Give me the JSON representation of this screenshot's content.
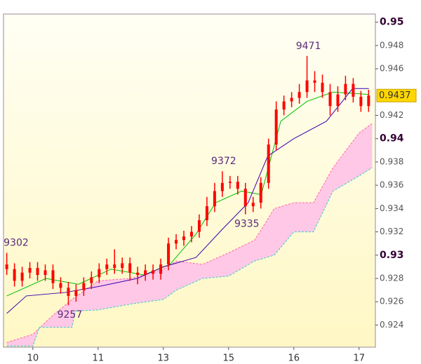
{
  "chart_data": {
    "type": "candlestick",
    "candle_color": "#ff0000",
    "x": [
      -0.4,
      -0.282,
      -0.164,
      -0.046,
      0.072,
      0.19,
      0.308,
      0.426,
      0.544,
      0.662,
      0.78,
      0.898,
      1.016,
      1.134,
      1.252,
      1.37,
      1.488,
      1.606,
      1.724,
      1.842,
      1.96,
      2.078,
      2.196,
      2.314,
      2.432,
      2.55,
      2.668,
      2.786,
      2.904,
      3.022,
      3.14,
      3.258,
      3.376,
      3.494,
      3.612,
      3.73,
      3.848,
      3.966,
      4.084,
      4.202,
      4.32,
      4.438,
      4.556,
      4.674,
      4.792,
      4.91,
      5.028,
      5.146
    ],
    "open": [
      0.9292,
      0.9288,
      0.9278,
      0.9285,
      0.9289,
      0.9283,
      0.9287,
      0.9276,
      0.9272,
      0.9265,
      0.927,
      0.9276,
      0.9281,
      0.9288,
      0.9292,
      0.9289,
      0.9293,
      0.9285,
      0.9283,
      0.9287,
      0.9284,
      0.9292,
      0.931,
      0.9313,
      0.9316,
      0.932,
      0.933,
      0.9342,
      0.9355,
      0.9362,
      0.9363,
      0.9357,
      0.9342,
      0.9345,
      0.9362,
      0.9395,
      0.9425,
      0.9432,
      0.9435,
      0.944,
      0.945,
      0.9448,
      0.944,
      0.9428,
      0.9438,
      0.9447,
      0.9436,
      0.9428
    ],
    "high": [
      0.9302,
      0.9293,
      0.929,
      0.9294,
      0.9294,
      0.9292,
      0.9292,
      0.9281,
      0.9277,
      0.9275,
      0.9281,
      0.9286,
      0.9293,
      0.9297,
      0.9305,
      0.9298,
      0.9298,
      0.929,
      0.9292,
      0.9292,
      0.9297,
      0.9315,
      0.9318,
      0.9321,
      0.9325,
      0.9335,
      0.935,
      0.9362,
      0.9372,
      0.9368,
      0.9368,
      0.9362,
      0.935,
      0.9367,
      0.94,
      0.9432,
      0.9437,
      0.944,
      0.9447,
      0.9471,
      0.9458,
      0.9455,
      0.9447,
      0.9445,
      0.9454,
      0.9452,
      0.9441,
      0.9442
    ],
    "low": [
      0.9283,
      0.9273,
      0.9273,
      0.928,
      0.9278,
      0.9278,
      0.9271,
      0.9267,
      0.9257,
      0.926,
      0.9265,
      0.9271,
      0.9276,
      0.9283,
      0.9284,
      0.9284,
      0.9278,
      0.9275,
      0.9278,
      0.9279,
      0.9279,
      0.9287,
      0.9305,
      0.9308,
      0.9311,
      0.9315,
      0.9325,
      0.9337,
      0.935,
      0.9357,
      0.9352,
      0.9335,
      0.9337,
      0.934,
      0.9357,
      0.939,
      0.942,
      0.9427,
      0.943,
      0.9435,
      0.944,
      0.9435,
      0.942,
      0.9423,
      0.9433,
      0.9431,
      0.9423,
      0.9423
    ],
    "close": [
      0.9288,
      0.9278,
      0.9285,
      0.9289,
      0.9283,
      0.9287,
      0.9276,
      0.9272,
      0.9265,
      0.927,
      0.9276,
      0.9281,
      0.9288,
      0.9292,
      0.9289,
      0.9293,
      0.9285,
      0.9283,
      0.9287,
      0.9284,
      0.9292,
      0.931,
      0.9313,
      0.9316,
      0.932,
      0.933,
      0.9342,
      0.9355,
      0.9362,
      0.9363,
      0.9357,
      0.9342,
      0.9345,
      0.9362,
      0.9395,
      0.9425,
      0.9432,
      0.9435,
      0.944,
      0.945,
      0.9448,
      0.944,
      0.9428,
      0.9438,
      0.9447,
      0.9436,
      0.9428,
      0.9437
    ],
    "lines": [
      {
        "color": "#00c000",
        "x": [
          -0.4,
          0.2,
          0.7,
          1.2,
          1.7,
          2.1,
          2.5,
          2.8,
          3.2,
          3.5,
          3.8,
          4.2,
          4.6,
          5.15
        ],
        "values": [
          0.9265,
          0.928,
          0.9275,
          0.9288,
          0.9283,
          0.9292,
          0.9318,
          0.9345,
          0.9355,
          0.9352,
          0.9415,
          0.9432,
          0.944,
          0.9438
        ]
      },
      {
        "color": "#3a00b0",
        "x": [
          -0.4,
          -0.1,
          0.5,
          1.0,
          1.6,
          2.0,
          2.5,
          2.9,
          3.3,
          3.6,
          4.0,
          4.5,
          4.9,
          5.15
        ],
        "values": [
          0.925,
          0.9265,
          0.9268,
          0.9273,
          0.928,
          0.929,
          0.9298,
          0.9322,
          0.9345,
          0.9385,
          0.94,
          0.9415,
          0.9443,
          0.9443
        ]
      }
    ],
    "cloud": {
      "fill": "#ffc8e6",
      "upper": {
        "color": "#ff66aa",
        "x": [
          -0.4,
          0.0,
          0.3,
          0.6,
          1.0,
          1.5,
          2.0,
          2.2,
          2.6,
          3.0,
          3.4,
          3.7,
          4.0,
          4.3,
          4.6,
          5.0,
          5.2
        ],
        "values": [
          0.9225,
          0.9232,
          0.9248,
          0.9262,
          0.9278,
          0.928,
          0.9288,
          0.9295,
          0.9292,
          0.9302,
          0.9313,
          0.934,
          0.9345,
          0.9345,
          0.9375,
          0.9405,
          0.9413
        ]
      },
      "lower": {
        "color": "#33cccc",
        "x": [
          -0.4,
          0.0,
          0.1,
          0.6,
          0.65,
          1.0,
          1.5,
          2.0,
          2.2,
          2.6,
          3.0,
          3.4,
          3.7,
          4.0,
          4.3,
          4.6,
          5.0,
          5.2
        ],
        "values": [
          0.9222,
          0.9222,
          0.9238,
          0.9238,
          0.9252,
          0.9253,
          0.9258,
          0.9262,
          0.927,
          0.928,
          0.9282,
          0.9295,
          0.93,
          0.932,
          0.932,
          0.9355,
          0.9368,
          0.9375
        ]
      }
    },
    "annotations": [
      {
        "label": "9302",
        "value": 0.9302,
        "x": -0.4,
        "placement": "above"
      },
      {
        "label": "9257",
        "value": 0.9257,
        "x": 0.544,
        "placement": "below"
      },
      {
        "label": "9372",
        "value": 0.9372,
        "x": 2.904,
        "placement": "above"
      },
      {
        "label": "9335",
        "value": 0.9335,
        "x": 3.258,
        "placement": "below"
      },
      {
        "label": "9471",
        "value": 0.9471,
        "x": 4.202,
        "placement": "above"
      }
    ],
    "last_price": 0.9437,
    "xlim": [
      -0.45,
      5.25
    ],
    "ylim": [
      0.9221,
      0.9507
    ],
    "xticks": [
      {
        "value": 0,
        "label": "10"
      },
      {
        "value": 1,
        "label": "11"
      },
      {
        "value": 2,
        "label": "13"
      },
      {
        "value": 3,
        "label": "15"
      },
      {
        "value": 4,
        "label": "16"
      },
      {
        "value": 5,
        "label": "17"
      }
    ],
    "yticks": [
      0.95,
      0.948,
      0.946,
      0.942,
      0.94,
      0.938,
      0.936,
      0.934,
      0.932,
      0.93,
      0.928,
      0.926,
      0.924
    ]
  }
}
